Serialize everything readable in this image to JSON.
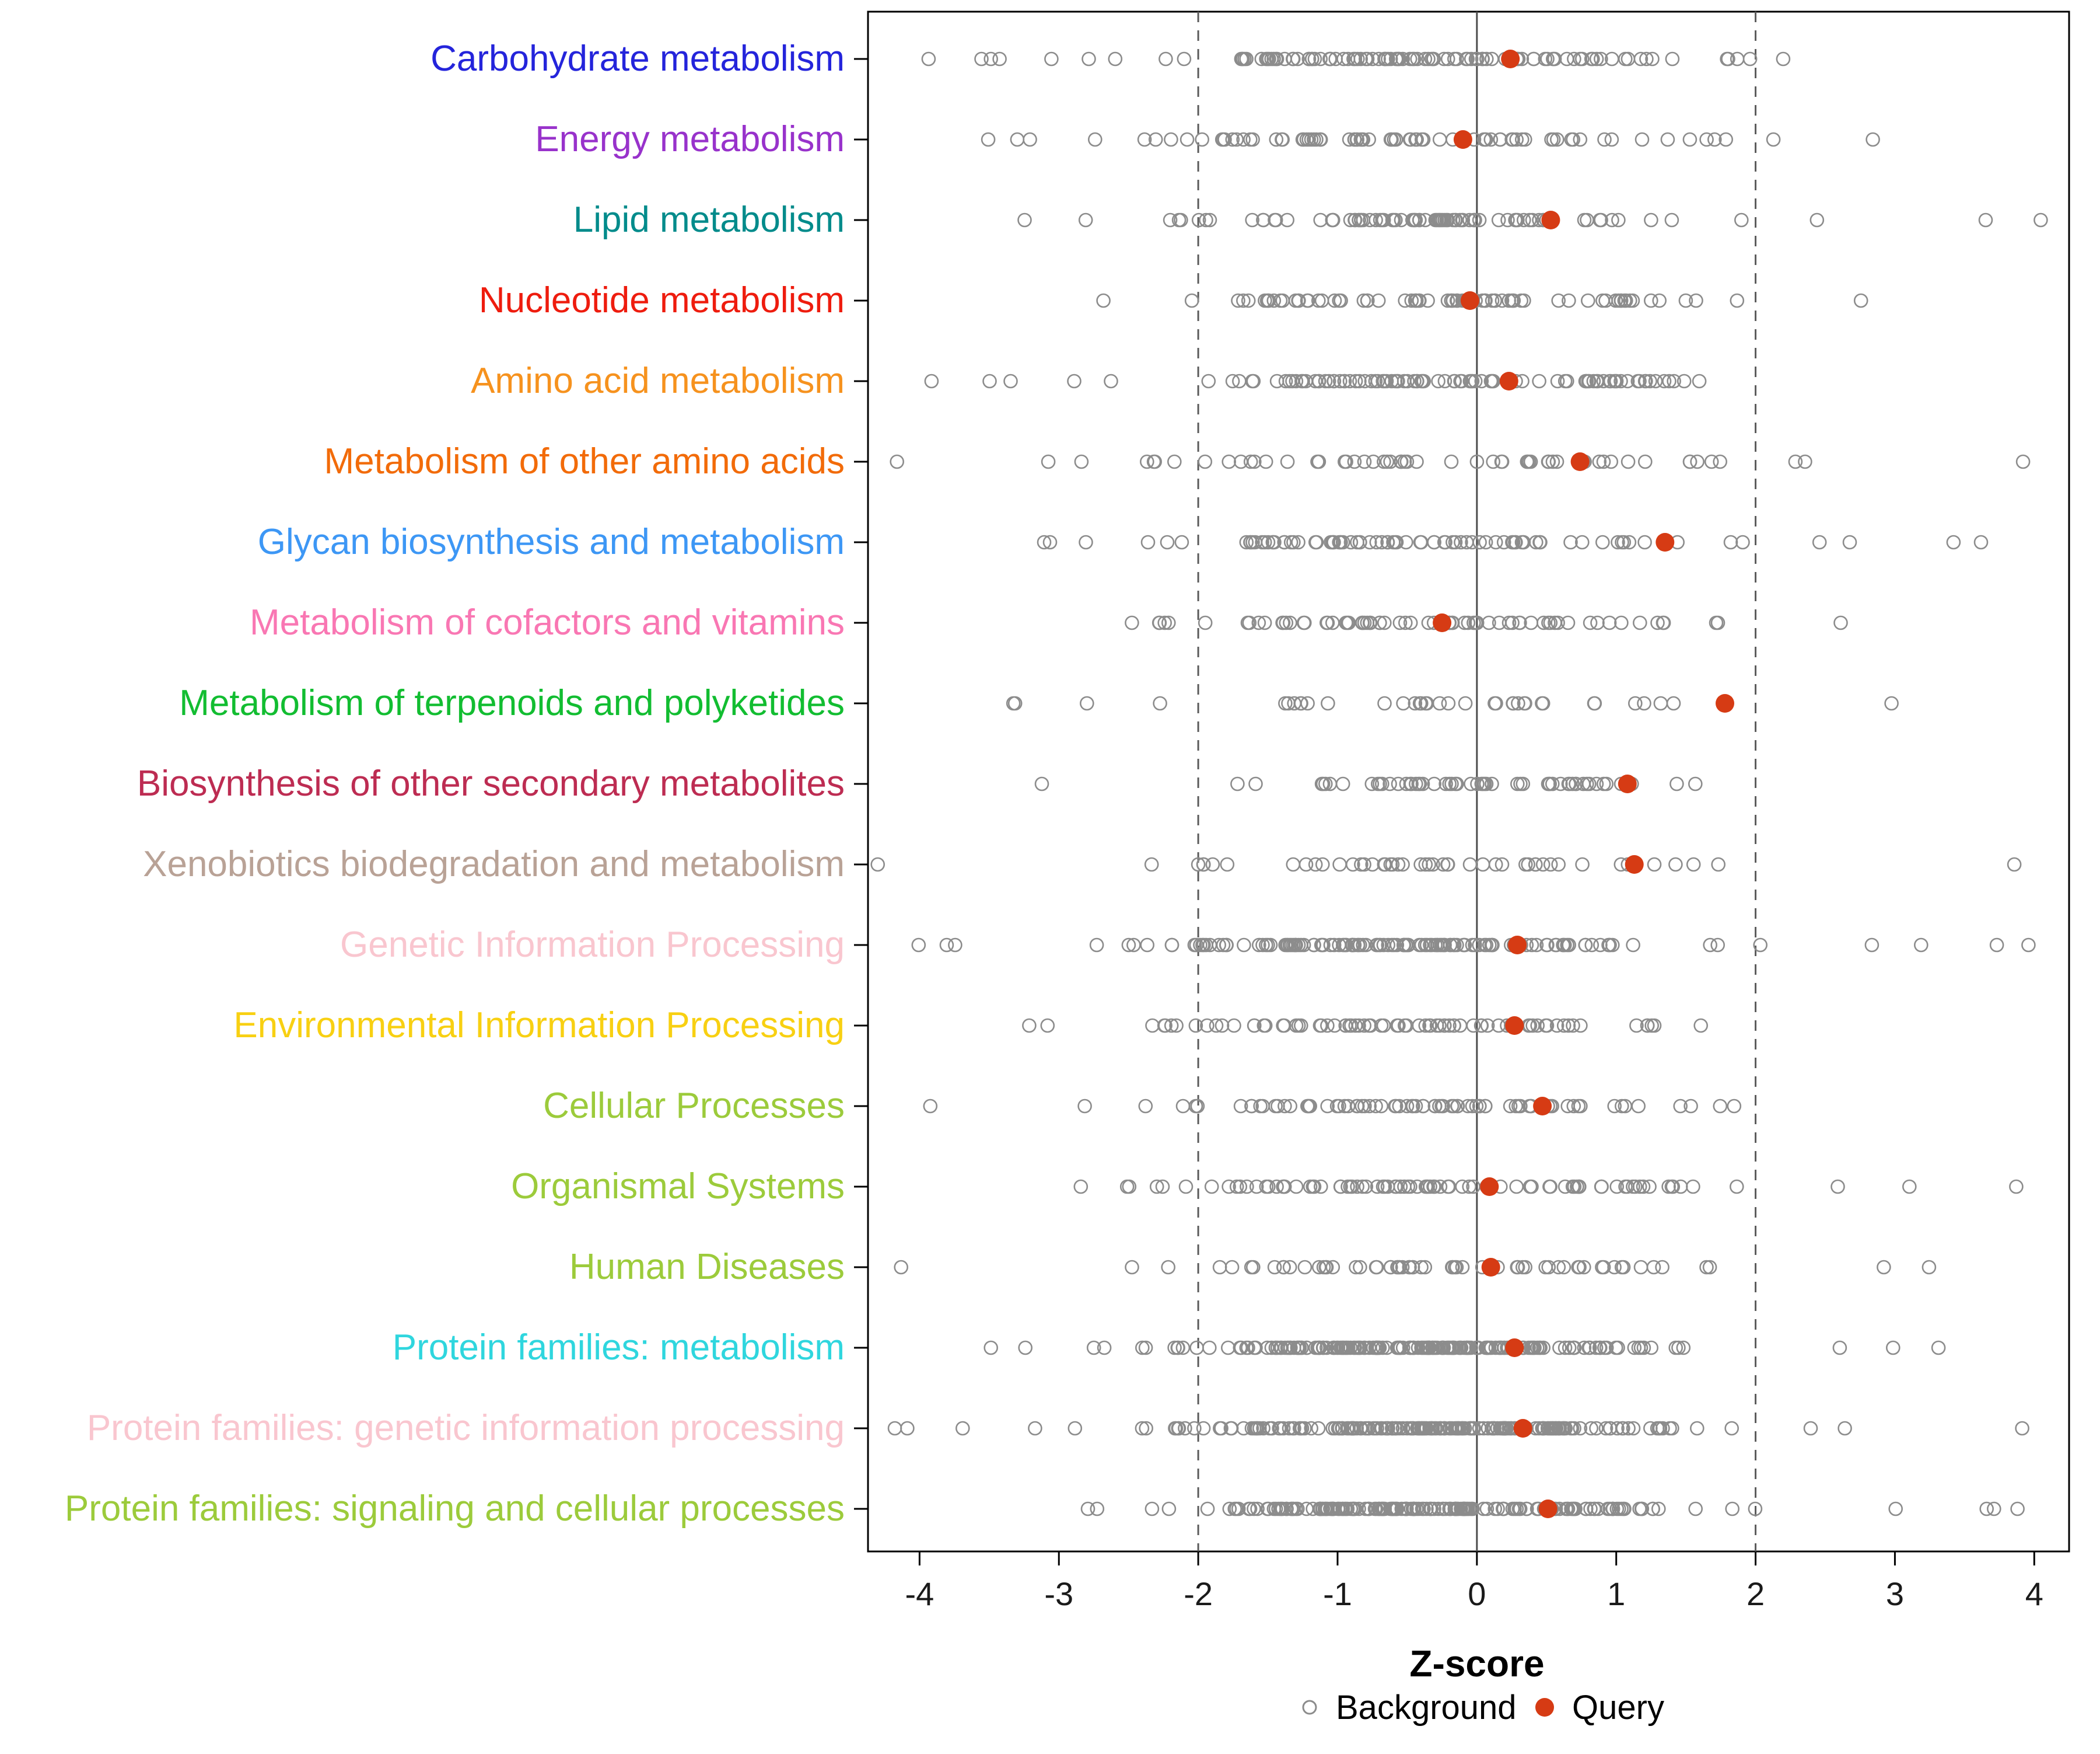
{
  "chart_data": {
    "type": "scatter",
    "subtype": "strip-dot-plot",
    "xlabel": "Z-score",
    "xlim": [
      -4.37,
      4.25
    ],
    "x_ticks": [
      -4,
      -3,
      -2,
      -1,
      0,
      1,
      2,
      3,
      4
    ],
    "reference_lines": {
      "dashed": [
        -2,
        2
      ],
      "solid": [
        0
      ]
    },
    "legend": {
      "background_label": "Background",
      "query_label": "Query"
    },
    "point_colors": {
      "background_stroke": "#8c8c8c",
      "query_fill": "#d63b14"
    },
    "line_colors": {
      "panel_border": "#000000",
      "dashed_ref": "#5a5a5a",
      "solid_ref": "#4d4d4d",
      "tick": "#000000"
    },
    "rows": [
      {
        "category": "Carbohydrate metabolism",
        "color": "#2424db",
        "query": 0.24,
        "bg_n": 110,
        "bg_mean": -0.35,
        "bg_sd": 0.95,
        "seed": 11
      },
      {
        "category": "Energy metabolism",
        "color": "#9832cb",
        "query": -0.1,
        "bg_n": 78,
        "bg_mean": -0.45,
        "bg_sd": 1.05,
        "seed": 22
      },
      {
        "category": "Lipid metabolism",
        "color": "#008b8b",
        "query": 0.53,
        "bg_n": 88,
        "bg_mean": -0.25,
        "bg_sd": 1.0,
        "seed": 33
      },
      {
        "category": "Nucleotide metabolism",
        "color": "#ee1c0e",
        "query": -0.05,
        "bg_n": 80,
        "bg_mean": -0.35,
        "bg_sd": 1.0,
        "seed": 44
      },
      {
        "category": "Amino acid metabolism",
        "color": "#f6921e",
        "query": 0.23,
        "bg_n": 100,
        "bg_mean": -0.3,
        "bg_sd": 0.95,
        "seed": 55
      },
      {
        "category": "Metabolism of other amino acids",
        "color": "#f26b09",
        "query": 0.74,
        "bg_n": 58,
        "bg_mean": -0.2,
        "bg_sd": 1.1,
        "seed": 66
      },
      {
        "category": "Glycan biosynthesis and metabolism",
        "color": "#3d97f5",
        "query": 1.35,
        "bg_n": 85,
        "bg_mean": -0.2,
        "bg_sd": 1.0,
        "seed": 77
      },
      {
        "category": "Metabolism of cofactors and vitamins",
        "color": "#f977b3",
        "query": -0.25,
        "bg_n": 72,
        "bg_mean": -0.35,
        "bg_sd": 1.05,
        "seed": 88
      },
      {
        "category": "Metabolism of terpenoids and polyketides",
        "color": "#12bd31",
        "query": 1.78,
        "bg_n": 38,
        "bg_mean": -0.5,
        "bg_sd": 1.2,
        "seed": 99
      },
      {
        "category": "Biosynthesis of other secondary metabolites",
        "color": "#bd2c52",
        "query": 1.08,
        "bg_n": 60,
        "bg_mean": -0.3,
        "bg_sd": 1.05,
        "seed": 110
      },
      {
        "category": "Xenobiotics biodegradation and metabolism",
        "color": "#b9a296",
        "query": 1.13,
        "bg_n": 48,
        "bg_mean": -0.35,
        "bg_sd": 1.1,
        "seed": 121
      },
      {
        "category": "Genetic Information Processing",
        "color": "#f9c6cf",
        "query": 0.29,
        "bg_n": 140,
        "bg_mean": -0.5,
        "bg_sd": 0.9,
        "seed": 132
      },
      {
        "category": "Environmental Information Processing",
        "color": "#f8d012",
        "query": 0.27,
        "bg_n": 78,
        "bg_mean": -0.35,
        "bg_sd": 1.0,
        "seed": 143
      },
      {
        "category": "Cellular Processes",
        "color": "#9ccb3b",
        "query": 0.47,
        "bg_n": 78,
        "bg_mean": -0.3,
        "bg_sd": 1.05,
        "seed": 154
      },
      {
        "category": "Organismal Systems",
        "color": "#9ccb3b",
        "query": 0.09,
        "bg_n": 88,
        "bg_mean": -0.35,
        "bg_sd": 1.0,
        "seed": 165
      },
      {
        "category": "Human Diseases",
        "color": "#9ccb3b",
        "query": 0.1,
        "bg_n": 66,
        "bg_mean": -0.3,
        "bg_sd": 1.0,
        "seed": 176
      },
      {
        "category": "Protein families: metabolism",
        "color": "#2fd6de",
        "query": 0.27,
        "bg_n": 190,
        "bg_mean": -0.35,
        "bg_sd": 0.9,
        "seed": 187
      },
      {
        "category": "Protein families: genetic information processing",
        "color": "#f9c6cf",
        "query": 0.33,
        "bg_n": 210,
        "bg_mean": -0.3,
        "bg_sd": 0.9,
        "seed": 198
      },
      {
        "category": "Protein families: signaling and cellular processes",
        "color": "#9ccb3b",
        "query": 0.51,
        "bg_n": 200,
        "bg_mean": -0.35,
        "bg_sd": 0.9,
        "seed": 209
      }
    ]
  }
}
